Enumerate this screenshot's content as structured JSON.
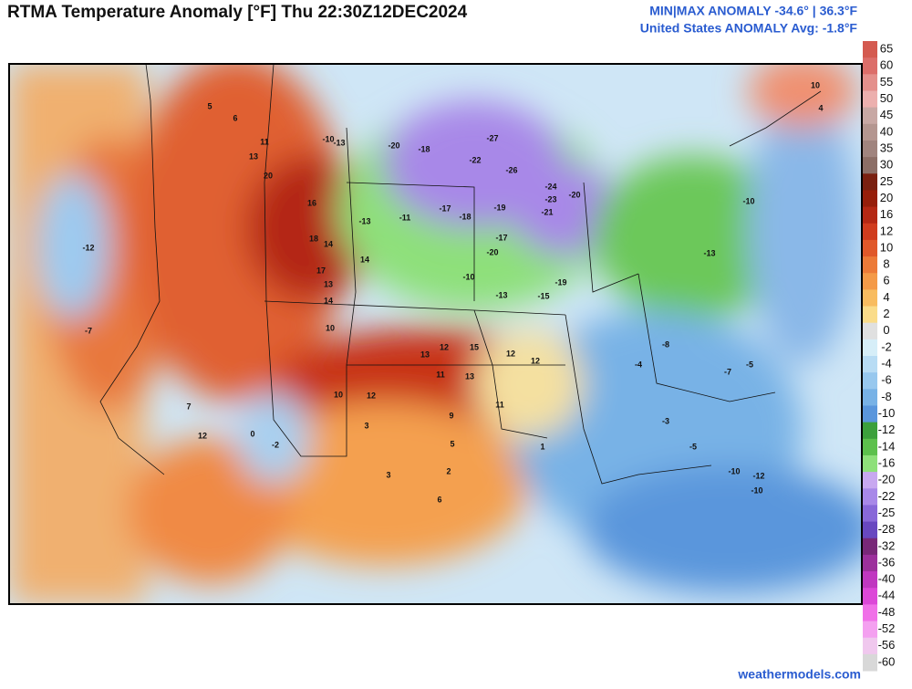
{
  "header": {
    "title": "RTMA Temperature Anomaly [°F]  Thu 22:30Z12DEC2024",
    "stats_line1": "MIN|MAX ANOMALY -34.6° | 36.3°F",
    "stats_line2": "United States ANOMALY Avg: -1.8°F"
  },
  "legend": {
    "labels": [
      65,
      60,
      55,
      50,
      45,
      40,
      35,
      30,
      25,
      20,
      16,
      12,
      10,
      8,
      6,
      4,
      2,
      0,
      -2,
      -4,
      -6,
      -8,
      -10,
      -12,
      -14,
      -16,
      -20,
      -22,
      -25,
      -28,
      -32,
      -36,
      -40,
      -44,
      -48,
      -52,
      -56,
      -60
    ],
    "colors": [
      "#d45a50",
      "#dc6e6a",
      "#e4908c",
      "#ecb0ae",
      "#c8a8a4",
      "#b49690",
      "#a0847e",
      "#8c6e66",
      "#7a2010",
      "#961e0a",
      "#b42814",
      "#d03c1e",
      "#e0582a",
      "#ec7a38",
      "#f49a48",
      "#f8bc60",
      "#fadc8a",
      "#e0e0e0",
      "#d6eef8",
      "#b8dcf4",
      "#98c8ee",
      "#78b2e6",
      "#5a96dc",
      "#3ca03c",
      "#5cc04c",
      "#8ee07a",
      "#c8a8f0",
      "#a888e8",
      "#8868d8",
      "#6848c0",
      "#782878",
      "#9c309c",
      "#c038c0",
      "#dc48d8",
      "#f070e8",
      "#f4a0f0",
      "#f0c8ee",
      "#d8d8d8"
    ]
  },
  "map": {
    "station_values": [
      5,
      6,
      11,
      13,
      20,
      16,
      18,
      14,
      17,
      14,
      13,
      14,
      10,
      -10,
      -13,
      -20,
      -18,
      -22,
      -27,
      -26,
      -24,
      -23,
      -21,
      -20,
      -19,
      -17,
      -18,
      -13,
      -11,
      -20,
      -17,
      -19,
      -15,
      -13,
      -10,
      13,
      12,
      15,
      12,
      12,
      11,
      13,
      11,
      9,
      10,
      12,
      3,
      5,
      2,
      6,
      3,
      -3,
      -5,
      -8,
      -10,
      -12,
      -10,
      -4,
      -5,
      -7,
      12,
      7,
      -12,
      -7,
      0,
      -2,
      1,
      -13,
      -10,
      4,
      10
    ]
  },
  "footer": {
    "credit": "weathermodels.com"
  }
}
